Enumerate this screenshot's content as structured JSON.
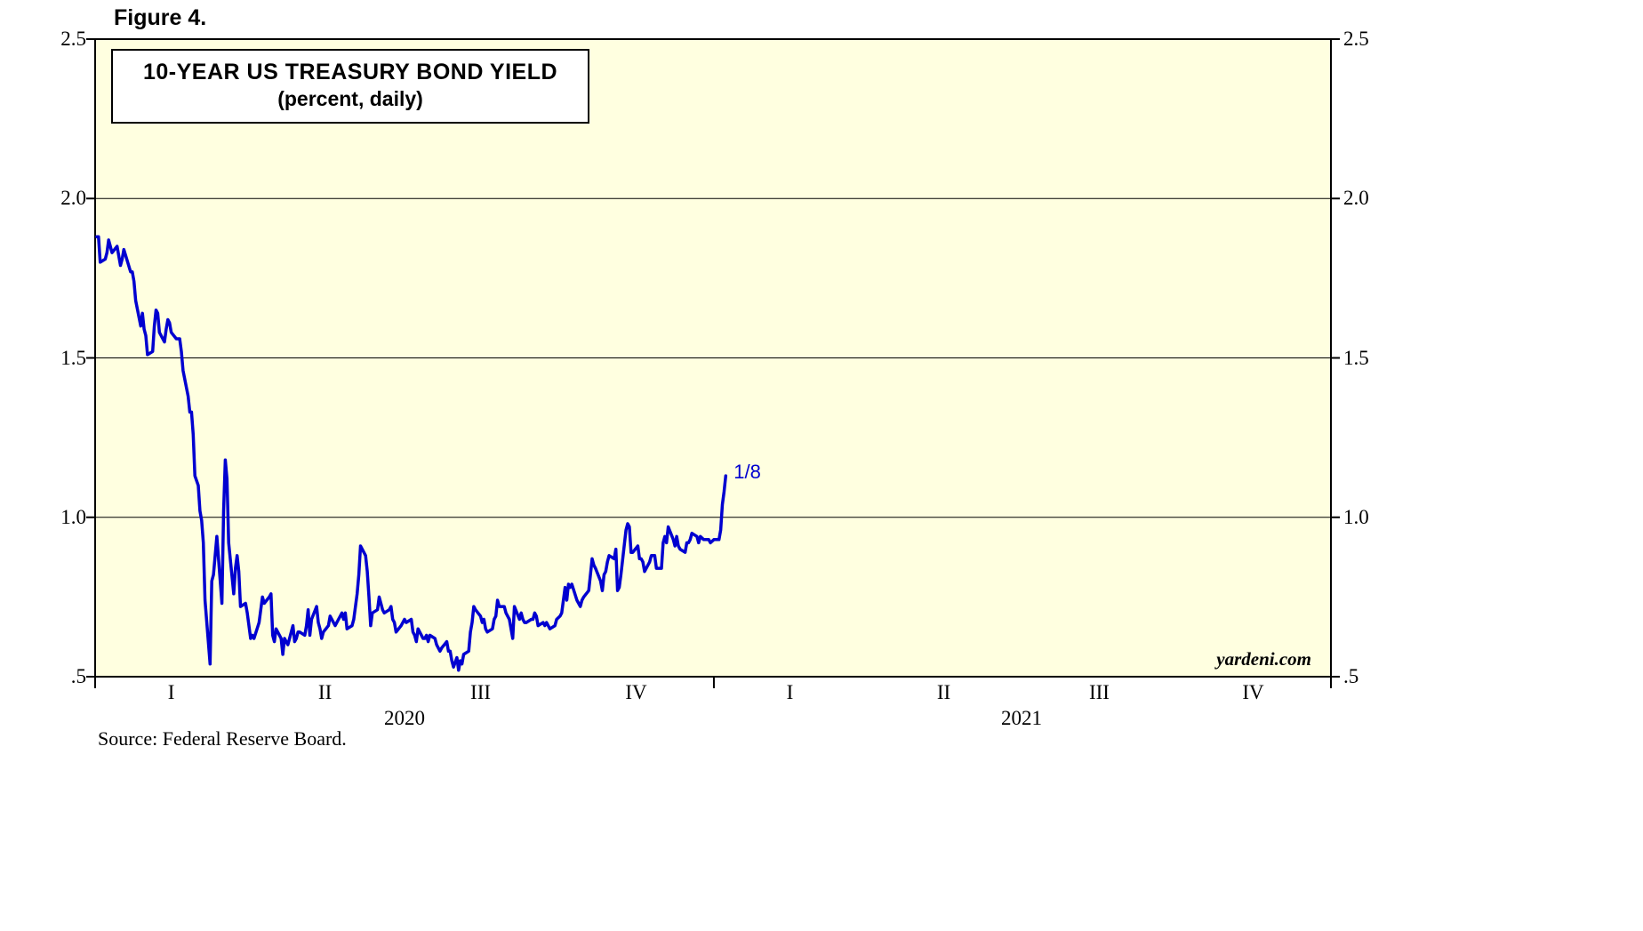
{
  "figure_label": "Figure 4.",
  "title": "10-YEAR US TREASURY BOND YIELD",
  "subtitle": "(percent, daily)",
  "source": "Source: Federal Reserve Board.",
  "watermark": "yardeni.com",
  "annotation": {
    "label": "1/8",
    "day": 373,
    "value": 1.13
  },
  "colors": {
    "line": "#0000D0",
    "plot_bg": "#FFFFE0",
    "axis": "#000000"
  },
  "chart_data": {
    "type": "line",
    "title": "10-YEAR US TREASURY BOND YIELD",
    "subtitle": "(percent, daily)",
    "x_unit": "days since 2020-01-01",
    "x_domain": [
      0,
      731
    ],
    "y_domain": [
      0.5,
      2.5
    ],
    "gridlines": [
      1.0,
      1.5,
      2.0
    ],
    "y_ticks": [
      {
        "label": "2.5",
        "value": 2.5
      },
      {
        "label": "2.0",
        "value": 2.0
      },
      {
        "label": "1.5",
        "value": 1.5
      },
      {
        "label": "1.0",
        "value": 1.0
      },
      {
        "label": ".5",
        "value": 0.5
      }
    ],
    "x_ticks_days": [
      0,
      366,
      731
    ],
    "x_quarter_labels": [
      {
        "label": "I",
        "day": 45
      },
      {
        "label": "II",
        "day": 136
      },
      {
        "label": "III",
        "day": 228
      },
      {
        "label": "IV",
        "day": 320
      },
      {
        "label": "I",
        "day": 411
      },
      {
        "label": "II",
        "day": 502
      },
      {
        "label": "III",
        "day": 594
      },
      {
        "label": "IV",
        "day": 685
      }
    ],
    "x_year_labels": [
      {
        "label": "2020",
        "day": 183
      },
      {
        "label": "2021",
        "day": 548
      }
    ],
    "legend": "none",
    "series": [
      {
        "name": "10-Year US Treasury Bond Yield (percent, daily)",
        "points": [
          [
            1,
            1.88
          ],
          [
            2,
            1.88
          ],
          [
            3,
            1.8
          ],
          [
            6,
            1.81
          ],
          [
            7,
            1.83
          ],
          [
            8,
            1.87
          ],
          [
            9,
            1.85
          ],
          [
            10,
            1.83
          ],
          [
            13,
            1.85
          ],
          [
            14,
            1.82
          ],
          [
            15,
            1.79
          ],
          [
            16,
            1.81
          ],
          [
            17,
            1.84
          ],
          [
            21,
            1.77
          ],
          [
            22,
            1.77
          ],
          [
            23,
            1.74
          ],
          [
            24,
            1.68
          ],
          [
            27,
            1.6
          ],
          [
            28,
            1.64
          ],
          [
            29,
            1.59
          ],
          [
            30,
            1.57
          ],
          [
            31,
            1.51
          ],
          [
            34,
            1.52
          ],
          [
            35,
            1.6
          ],
          [
            36,
            1.65
          ],
          [
            37,
            1.64
          ],
          [
            38,
            1.58
          ],
          [
            41,
            1.55
          ],
          [
            42,
            1.59
          ],
          [
            43,
            1.62
          ],
          [
            44,
            1.61
          ],
          [
            45,
            1.58
          ],
          [
            48,
            1.56
          ],
          [
            49,
            1.56
          ],
          [
            50,
            1.56
          ],
          [
            51,
            1.52
          ],
          [
            52,
            1.46
          ],
          [
            55,
            1.38
          ],
          [
            56,
            1.33
          ],
          [
            57,
            1.33
          ],
          [
            58,
            1.26
          ],
          [
            59,
            1.13
          ],
          [
            61,
            1.1
          ],
          [
            62,
            1.02
          ],
          [
            63,
            0.99
          ],
          [
            64,
            0.92
          ],
          [
            65,
            0.74
          ],
          [
            68,
            0.54
          ],
          [
            69,
            0.8
          ],
          [
            70,
            0.82
          ],
          [
            71,
            0.88
          ],
          [
            72,
            0.94
          ],
          [
            75,
            0.73
          ],
          [
            76,
            1.02
          ],
          [
            77,
            1.18
          ],
          [
            78,
            1.12
          ],
          [
            79,
            0.92
          ],
          [
            82,
            0.76
          ],
          [
            83,
            0.84
          ],
          [
            84,
            0.88
          ],
          [
            85,
            0.83
          ],
          [
            86,
            0.72
          ],
          [
            89,
            0.73
          ],
          [
            90,
            0.7
          ],
          [
            92,
            0.62
          ],
          [
            93,
            0.63
          ],
          [
            94,
            0.62
          ],
          [
            97,
            0.67
          ],
          [
            98,
            0.71
          ],
          [
            99,
            0.75
          ],
          [
            100,
            0.73
          ],
          [
            103,
            0.75
          ],
          [
            104,
            0.76
          ],
          [
            105,
            0.63
          ],
          [
            106,
            0.61
          ],
          [
            107,
            0.65
          ],
          [
            110,
            0.62
          ],
          [
            111,
            0.57
          ],
          [
            112,
            0.62
          ],
          [
            113,
            0.61
          ],
          [
            114,
            0.6
          ],
          [
            117,
            0.66
          ],
          [
            118,
            0.61
          ],
          [
            119,
            0.62
          ],
          [
            120,
            0.64
          ],
          [
            121,
            0.64
          ],
          [
            124,
            0.63
          ],
          [
            125,
            0.66
          ],
          [
            126,
            0.71
          ],
          [
            127,
            0.63
          ],
          [
            128,
            0.68
          ],
          [
            131,
            0.72
          ],
          [
            132,
            0.67
          ],
          [
            133,
            0.65
          ],
          [
            134,
            0.62
          ],
          [
            135,
            0.64
          ],
          [
            138,
            0.66
          ],
          [
            139,
            0.69
          ],
          [
            140,
            0.68
          ],
          [
            141,
            0.67
          ],
          [
            142,
            0.66
          ],
          [
            146,
            0.7
          ],
          [
            147,
            0.68
          ],
          [
            148,
            0.7
          ],
          [
            149,
            0.65
          ],
          [
            152,
            0.66
          ],
          [
            153,
            0.68
          ],
          [
            155,
            0.76
          ],
          [
            156,
            0.82
          ],
          [
            157,
            0.91
          ],
          [
            160,
            0.88
          ],
          [
            161,
            0.83
          ],
          [
            162,
            0.75
          ],
          [
            163,
            0.66
          ],
          [
            164,
            0.7
          ],
          [
            167,
            0.71
          ],
          [
            168,
            0.75
          ],
          [
            169,
            0.73
          ],
          [
            170,
            0.71
          ],
          [
            171,
            0.7
          ],
          [
            174,
            0.71
          ],
          [
            175,
            0.72
          ],
          [
            176,
            0.68
          ],
          [
            177,
            0.67
          ],
          [
            178,
            0.64
          ],
          [
            181,
            0.66
          ],
          [
            183,
            0.68
          ],
          [
            184,
            0.67
          ],
          [
            187,
            0.68
          ],
          [
            188,
            0.64
          ],
          [
            189,
            0.63
          ],
          [
            190,
            0.61
          ],
          [
            191,
            0.65
          ],
          [
            194,
            0.62
          ],
          [
            195,
            0.62
          ],
          [
            196,
            0.63
          ],
          [
            197,
            0.61
          ],
          [
            198,
            0.63
          ],
          [
            201,
            0.62
          ],
          [
            202,
            0.6
          ],
          [
            203,
            0.59
          ],
          [
            204,
            0.58
          ],
          [
            205,
            0.59
          ],
          [
            208,
            0.61
          ],
          [
            209,
            0.58
          ],
          [
            210,
            0.58
          ],
          [
            211,
            0.55
          ],
          [
            212,
            0.53
          ],
          [
            214,
            0.56
          ],
          [
            215,
            0.52
          ],
          [
            216,
            0.55
          ],
          [
            217,
            0.54
          ],
          [
            218,
            0.57
          ],
          [
            221,
            0.58
          ],
          [
            222,
            0.64
          ],
          [
            223,
            0.67
          ],
          [
            224,
            0.72
          ],
          [
            225,
            0.71
          ],
          [
            228,
            0.69
          ],
          [
            229,
            0.67
          ],
          [
            230,
            0.68
          ],
          [
            231,
            0.65
          ],
          [
            232,
            0.64
          ],
          [
            235,
            0.65
          ],
          [
            236,
            0.68
          ],
          [
            237,
            0.69
          ],
          [
            238,
            0.74
          ],
          [
            239,
            0.72
          ],
          [
            242,
            0.72
          ],
          [
            243,
            0.7
          ],
          [
            245,
            0.68
          ],
          [
            246,
            0.65
          ],
          [
            247,
            0.62
          ],
          [
            248,
            0.72
          ],
          [
            251,
            0.68
          ],
          [
            252,
            0.7
          ],
          [
            253,
            0.68
          ],
          [
            254,
            0.67
          ],
          [
            255,
            0.67
          ],
          [
            258,
            0.68
          ],
          [
            259,
            0.68
          ],
          [
            260,
            0.7
          ],
          [
            261,
            0.69
          ],
          [
            262,
            0.66
          ],
          [
            265,
            0.67
          ],
          [
            266,
            0.66
          ],
          [
            267,
            0.67
          ],
          [
            268,
            0.66
          ],
          [
            269,
            0.65
          ],
          [
            272,
            0.66
          ],
          [
            273,
            0.68
          ],
          [
            275,
            0.69
          ],
          [
            276,
            0.7
          ],
          [
            278,
            0.78
          ],
          [
            279,
            0.74
          ],
          [
            280,
            0.79
          ],
          [
            281,
            0.78
          ],
          [
            282,
            0.79
          ],
          [
            285,
            0.74
          ],
          [
            286,
            0.73
          ],
          [
            287,
            0.72
          ],
          [
            288,
            0.74
          ],
          [
            289,
            0.75
          ],
          [
            292,
            0.77
          ],
          [
            293,
            0.82
          ],
          [
            294,
            0.87
          ],
          [
            295,
            0.85
          ],
          [
            296,
            0.84
          ],
          [
            299,
            0.8
          ],
          [
            300,
            0.77
          ],
          [
            301,
            0.82
          ],
          [
            302,
            0.83
          ],
          [
            303,
            0.86
          ],
          [
            304,
            0.88
          ],
          [
            307,
            0.87
          ],
          [
            308,
            0.9
          ],
          [
            309,
            0.77
          ],
          [
            310,
            0.78
          ],
          [
            311,
            0.82
          ],
          [
            314,
            0.96
          ],
          [
            315,
            0.98
          ],
          [
            316,
            0.97
          ],
          [
            317,
            0.89
          ],
          [
            318,
            0.89
          ],
          [
            321,
            0.91
          ],
          [
            322,
            0.87
          ],
          [
            323,
            0.87
          ],
          [
            324,
            0.86
          ],
          [
            325,
            0.83
          ],
          [
            328,
            0.86
          ],
          [
            329,
            0.88
          ],
          [
            331,
            0.88
          ],
          [
            332,
            0.84
          ],
          [
            335,
            0.84
          ],
          [
            336,
            0.92
          ],
          [
            337,
            0.94
          ],
          [
            338,
            0.92
          ],
          [
            339,
            0.97
          ],
          [
            342,
            0.93
          ],
          [
            343,
            0.91
          ],
          [
            344,
            0.94
          ],
          [
            345,
            0.91
          ],
          [
            346,
            0.9
          ],
          [
            349,
            0.89
          ],
          [
            350,
            0.92
          ],
          [
            351,
            0.92
          ],
          [
            352,
            0.93
          ],
          [
            353,
            0.95
          ],
          [
            356,
            0.94
          ],
          [
            357,
            0.92
          ],
          [
            358,
            0.94
          ],
          [
            360,
            0.93
          ],
          [
            363,
            0.93
          ],
          [
            364,
            0.92
          ],
          [
            366,
            0.93
          ],
          [
            369,
            0.93
          ],
          [
            370,
            0.96
          ],
          [
            371,
            1.04
          ],
          [
            372,
            1.08
          ],
          [
            373,
            1.13
          ]
        ]
      }
    ]
  }
}
